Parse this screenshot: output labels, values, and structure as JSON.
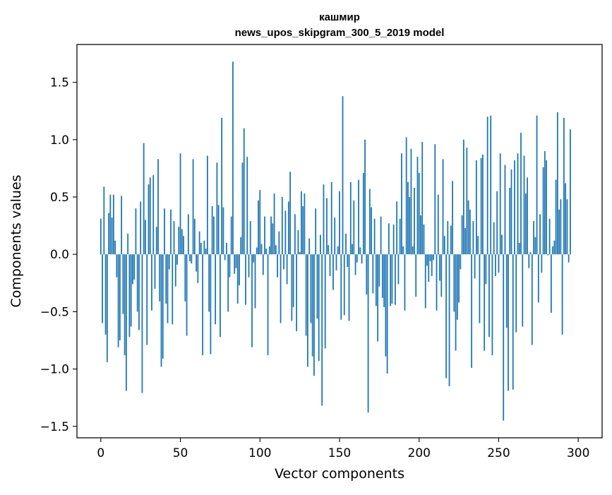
{
  "chart_data": {
    "type": "bar",
    "title_line1": "кашмир",
    "title_line2": "news_upos_skipgram_300_5_2019 model",
    "xlabel": "Vector components",
    "ylabel": "Components values",
    "xlim": [
      -15,
      315
    ],
    "ylim": [
      -1.6,
      1.83
    ],
    "xticks": [
      0,
      50,
      100,
      150,
      200,
      250,
      300
    ],
    "xtick_labels": [
      "0",
      "50",
      "100",
      "150",
      "200",
      "250",
      "300"
    ],
    "yticks": [
      -1.5,
      -1.0,
      -0.5,
      0.0,
      0.5,
      1.0,
      1.5
    ],
    "ytick_labels": [
      "−1.5",
      "−1.0",
      "−0.5",
      "0.0",
      "0.5",
      "1.0",
      "1.5"
    ],
    "grid": false,
    "bar_color": "#1f77b4",
    "values": [
      0.31,
      -0.6,
      0.59,
      -0.7,
      -0.94,
      0.36,
      0.52,
      0.32,
      0.52,
      0.12,
      -0.2,
      -0.81,
      -0.75,
      0.51,
      -0.52,
      -0.88,
      -1.19,
      0.18,
      -0.72,
      -0.63,
      -0.26,
      -0.22,
      0.4,
      -0.5,
      -0.66,
      0.46,
      -1.21,
      0.97,
      0.3,
      -0.79,
      0.61,
      0.67,
      -0.49,
      0.69,
      -0.3,
      0.24,
      0.83,
      -0.41,
      -0.98,
      -0.91,
      0.4,
      -0.43,
      -0.6,
      -0.13,
      0.39,
      -0.61,
      0.29,
      -0.28,
      -0.09,
      0.24,
      0.88,
      0.22,
      0.16,
      -0.41,
      -0.71,
      0.35,
      -0.06,
      -0.08,
      0.83,
      0.31,
      -0.15,
      -0.25,
      0.2,
      0.1,
      -0.88,
      0.12,
      0.05,
      0.86,
      -0.5,
      -0.87,
      0.42,
      0.33,
      -0.61,
      0.8,
      0.43,
      -0.72,
      1.19,
      0.41,
      -0.05,
      0.1,
      -0.5,
      -0.2,
      0.33,
      1.68,
      -0.17,
      -0.12,
      -0.43,
      -0.27,
      0.15,
      0.8,
      1.1,
      -0.44,
      0.85,
      -0.2,
      0.29,
      -0.81,
      -0.07,
      -0.47,
      0.06,
      0.47,
      0.56,
      0.09,
      -0.18,
      0.33,
      0.05,
      -0.88,
      0.07,
      0.33,
      0.27,
      0.53,
      0.08,
      -0.2,
      0.2,
      -0.6,
      0.5,
      -0.13,
      0.38,
      -0.26,
      0.46,
      0.72,
      -0.58,
      -0.46,
      0.35,
      -0.67,
      0.21,
      0.02,
      0.55,
      0.42,
      0.53,
      -0.71,
      -0.98,
      0.14,
      -0.6,
      -0.89,
      -1.06,
      0.4,
      -0.56,
      -0.93,
      0.17,
      -1.32,
      0.61,
      -0.82,
      0.49,
      0.08,
      -0.19,
      0.63,
      -0.31,
      0.32,
      -0.14,
      0.07,
      0.55,
      -0.57,
      1.38,
      -0.53,
      0.18,
      -0.11,
      -0.58,
      0.63,
      0.09,
      0.47,
      -0.18,
      -0.07,
      0.65,
      0.06,
      -0.08,
      0.71,
      1.0,
      -0.35,
      -1.38,
      0.57,
      0.41,
      -0.34,
      0.31,
      -0.45,
      -0.76,
      -0.28,
      0.33,
      -0.38,
      -0.46,
      -0.89,
      -1.04,
      0.27,
      -0.45,
      -0.43,
      0.26,
      -0.44,
      0.46,
      -0.26,
      0.31,
      0.88,
      0.07,
      -0.49,
      1.02,
      0.63,
      0.5,
      0.92,
      0.07,
      0.58,
      -0.37,
      0.85,
      0.71,
      0.34,
      0.98,
      0.26,
      -0.47,
      -0.1,
      -0.24,
      -0.06,
      -0.19,
      -0.05,
      0.96,
      -0.49,
      0.52,
      -0.23,
      -0.37,
      0.83,
      0.16,
      -1.08,
      0.29,
      -1.15,
      0.25,
      0.64,
      -0.5,
      -0.84,
      -0.57,
      -0.42,
      -0.13,
      0.34,
      1.0,
      0.23,
      0.93,
      0.47,
      0.39,
      -0.99,
      0.29,
      -0.21,
      0.82,
      0.16,
      -0.6,
      0.84,
      0.87,
      -0.84,
      -0.26,
      1.2,
      -0.72,
      1.21,
      -0.88,
      0.28,
      -0.19,
      0.55,
      -0.16,
      0.88,
      0.17,
      -1.45,
      0.78,
      -0.64,
      -1.19,
      0.58,
      0.74,
      -1.18,
      0.82,
      -0.68,
      0.88,
      0.1,
      1.06,
      -0.63,
      0.86,
      0.53,
      0.67,
      -0.12,
      0.02,
      -0.79,
      0.29,
      0.15,
      1.21,
      -0.42,
      0.35,
      -0.16,
      0.76,
      0.9,
      0.82,
      -0.01,
      0.31,
      -0.51,
      0.07,
      0.12,
      0.65,
      1.24,
      0.39,
      0.48,
      -0.7,
      1.19,
      0.62,
      0.48,
      -0.07,
      1.09
    ]
  }
}
